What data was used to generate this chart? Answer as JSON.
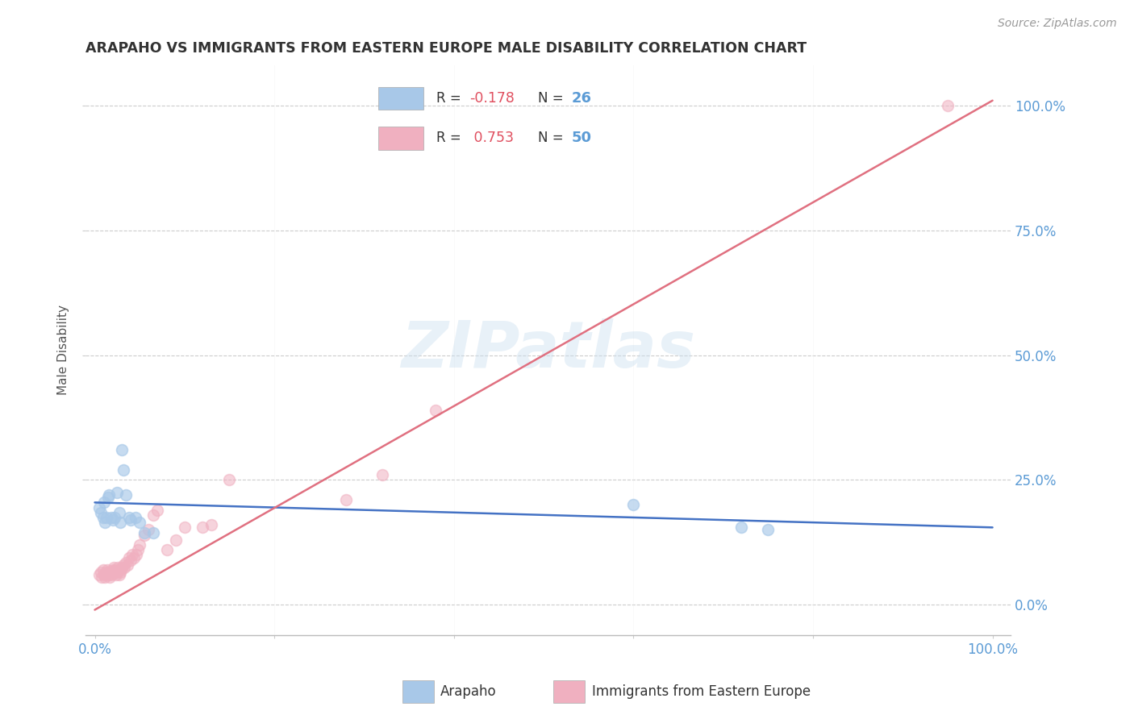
{
  "title": "ARAPAHO VS IMMIGRANTS FROM EASTERN EUROPE MALE DISABILITY CORRELATION CHART",
  "source": "Source: ZipAtlas.com",
  "ylabel": "Male Disability",
  "ytick_labels": [
    "0.0%",
    "25.0%",
    "50.0%",
    "75.0%",
    "100.0%"
  ],
  "ytick_values": [
    0.0,
    0.25,
    0.5,
    0.75,
    1.0
  ],
  "legend1_label": "Arapaho",
  "legend2_label": "Immigrants from Eastern Europe",
  "R1": -0.178,
  "N1": 26,
  "R2": 0.753,
  "N2": 50,
  "color_blue": "#a8c8e8",
  "color_pink": "#f0b0c0",
  "color_line_blue": "#4472c4",
  "color_line_pink": "#e07080",
  "watermark": "ZIPatlas",
  "arapaho_x": [
    0.005,
    0.007,
    0.009,
    0.01,
    0.011,
    0.013,
    0.015,
    0.016,
    0.018,
    0.02,
    0.022,
    0.025,
    0.027,
    0.028,
    0.03,
    0.032,
    0.035,
    0.038,
    0.04,
    0.045,
    0.05,
    0.055,
    0.065,
    0.6,
    0.72,
    0.75
  ],
  "arapaho_y": [
    0.195,
    0.185,
    0.175,
    0.205,
    0.165,
    0.175,
    0.215,
    0.22,
    0.175,
    0.17,
    0.175,
    0.225,
    0.185,
    0.165,
    0.31,
    0.27,
    0.22,
    0.175,
    0.17,
    0.175,
    0.165,
    0.145,
    0.145,
    0.2,
    0.155,
    0.15
  ],
  "eastern_x": [
    0.005,
    0.007,
    0.008,
    0.009,
    0.01,
    0.011,
    0.012,
    0.013,
    0.014,
    0.015,
    0.016,
    0.017,
    0.018,
    0.019,
    0.02,
    0.021,
    0.022,
    0.023,
    0.024,
    0.025,
    0.026,
    0.027,
    0.028,
    0.029,
    0.03,
    0.032,
    0.033,
    0.035,
    0.036,
    0.038,
    0.04,
    0.042,
    0.044,
    0.046,
    0.048,
    0.05,
    0.055,
    0.06,
    0.065,
    0.07,
    0.08,
    0.09,
    0.1,
    0.12,
    0.13,
    0.15,
    0.28,
    0.32,
    0.38,
    0.95
  ],
  "eastern_y": [
    0.06,
    0.065,
    0.055,
    0.07,
    0.06,
    0.055,
    0.065,
    0.06,
    0.07,
    0.065,
    0.06,
    0.055,
    0.06,
    0.065,
    0.07,
    0.075,
    0.065,
    0.07,
    0.06,
    0.065,
    0.075,
    0.06,
    0.065,
    0.07,
    0.075,
    0.08,
    0.075,
    0.085,
    0.08,
    0.095,
    0.09,
    0.1,
    0.095,
    0.1,
    0.11,
    0.12,
    0.14,
    0.15,
    0.18,
    0.19,
    0.11,
    0.13,
    0.155,
    0.155,
    0.16,
    0.25,
    0.21,
    0.26,
    0.39,
    1.0
  ]
}
